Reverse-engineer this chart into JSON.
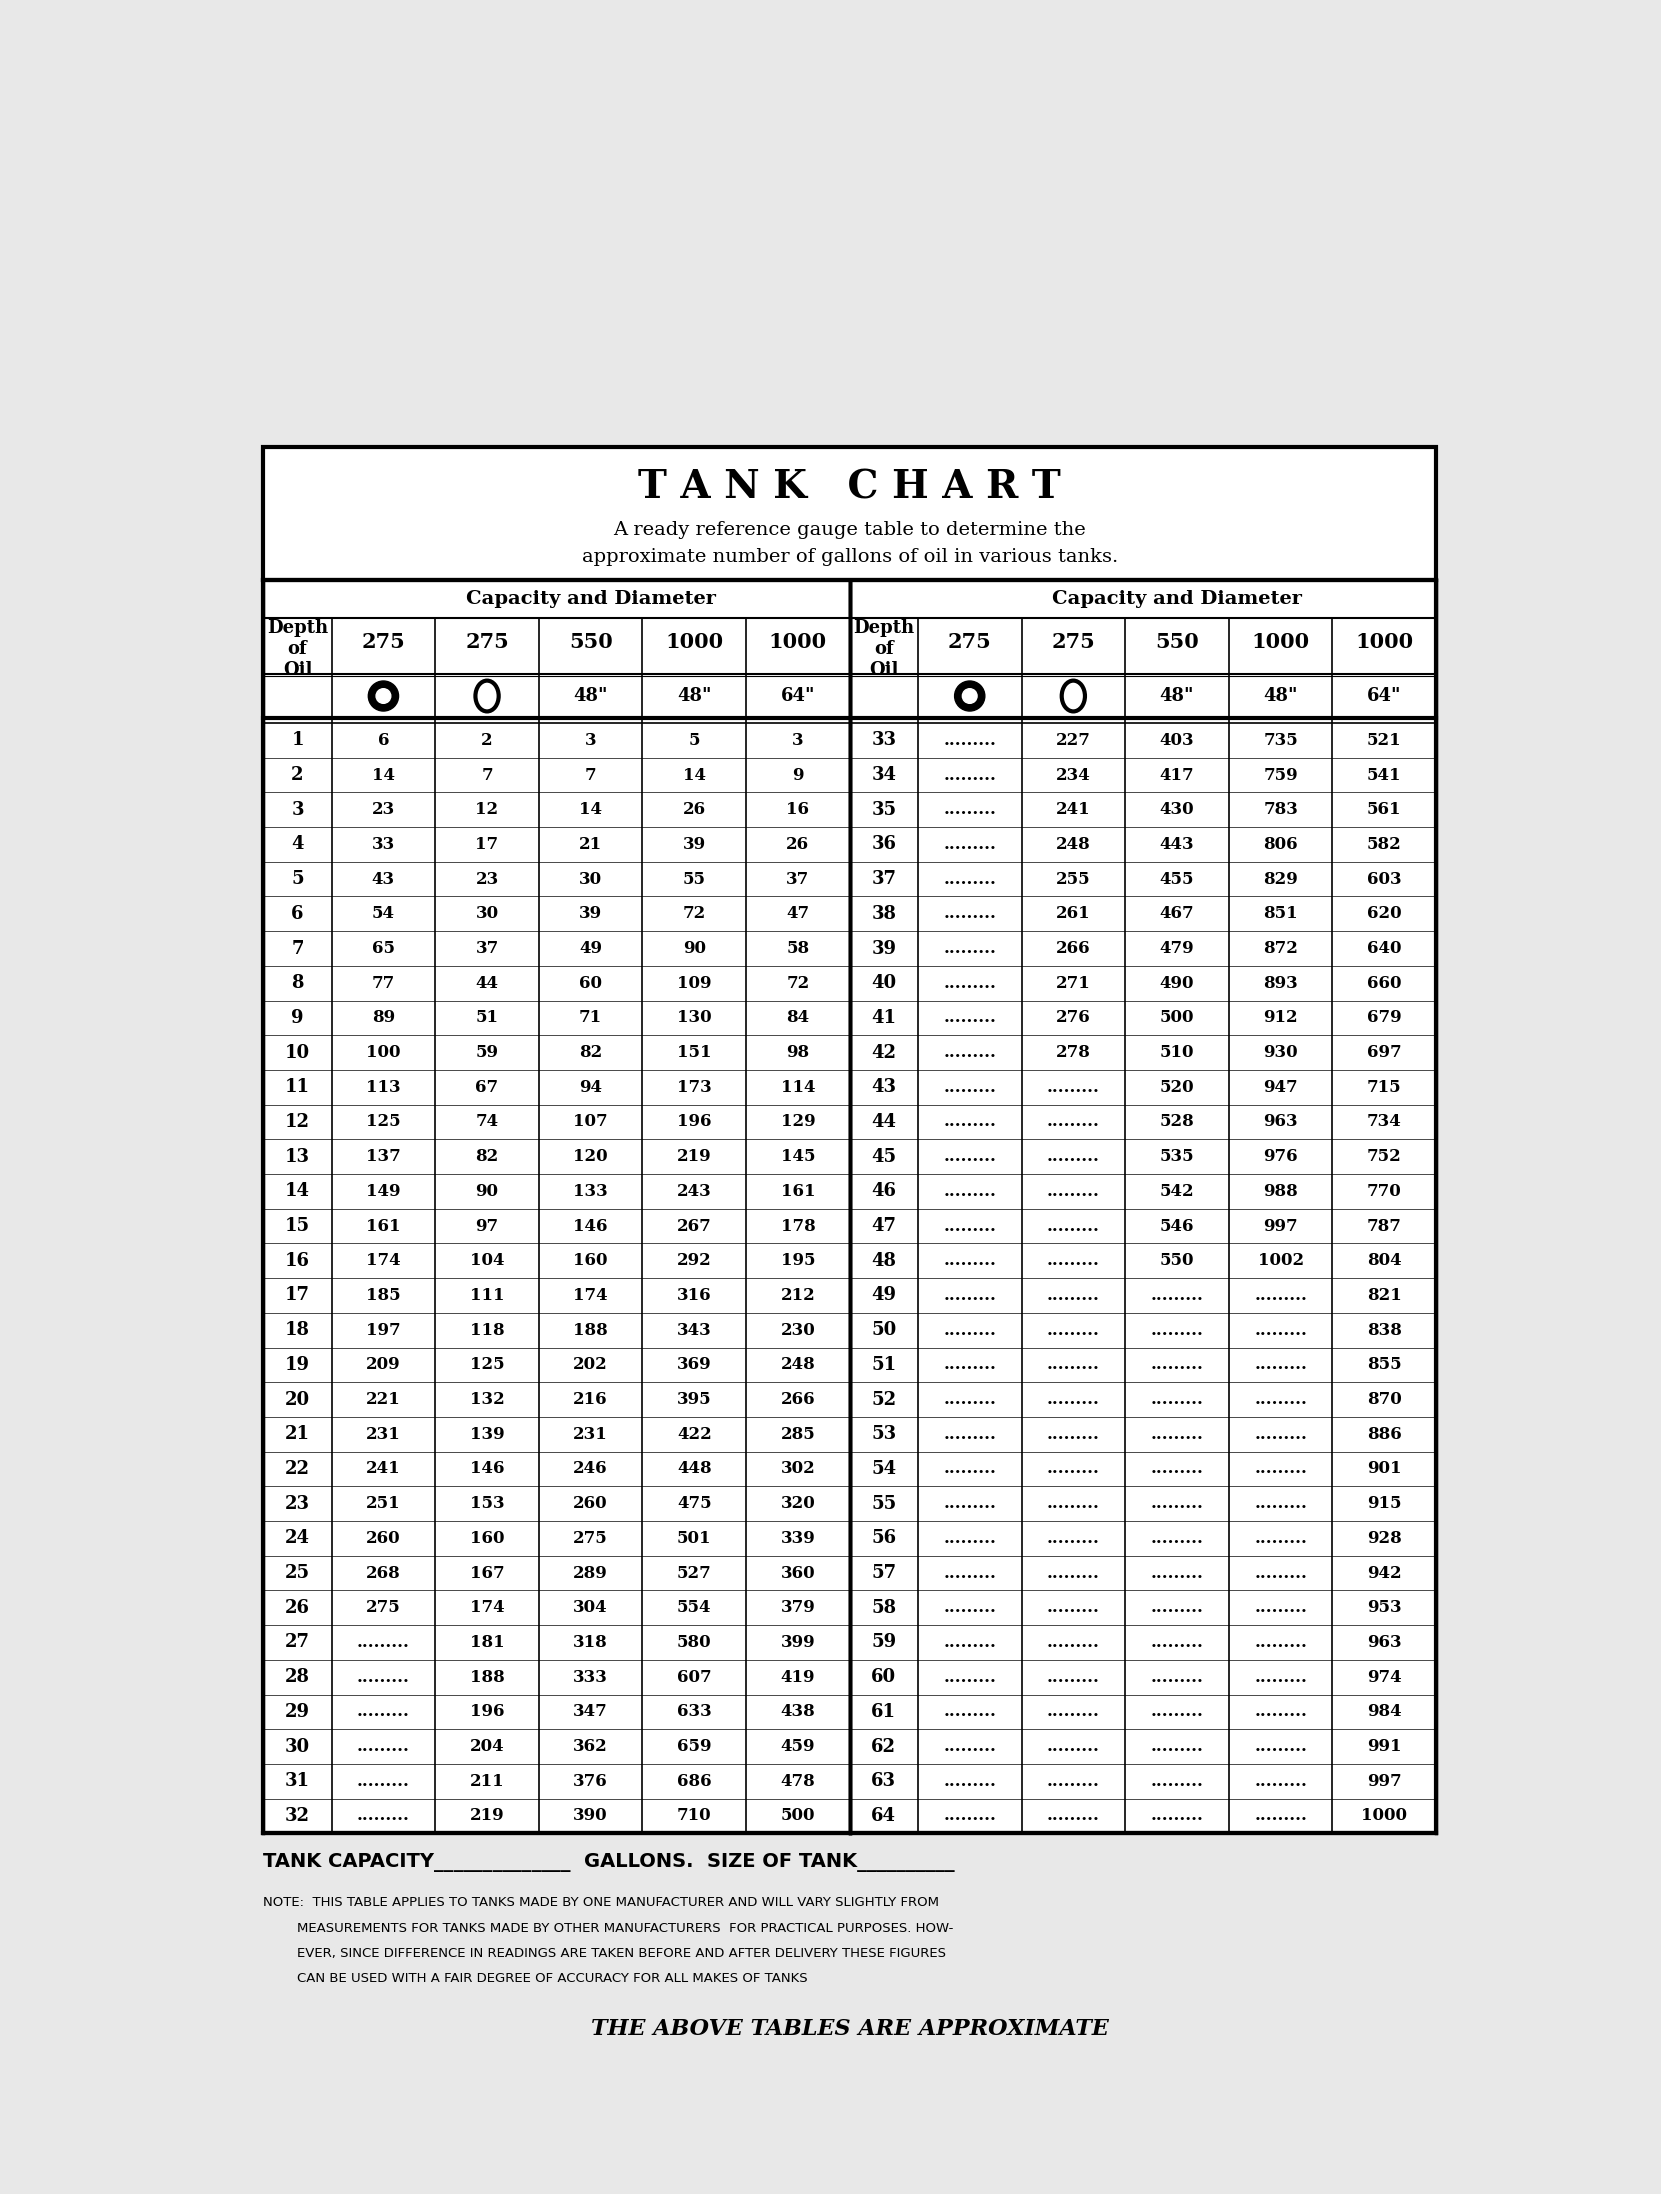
{
  "title": "T A N K   C H A R T",
  "subtitle1": "A ready reference gauge table to determine the",
  "subtitle2": "approximate number of gallons of oil in various tanks.",
  "cap_diam_label": "Capacity and Diameter",
  "footer_line": "TANK CAPACITY______________  GALLONS.  SIZE OF TANK__________",
  "footer_note_lines": [
    "NOTE:  THIS TABLE APPLIES TO TANKS MADE BY ONE MANUFACTURER AND WILL VARY SLIGHTLY FROM",
    "        MEASUREMENTS FOR TANKS MADE BY OTHER MANUFACTURERS  FOR PRACTICAL PURPOSES. HOW-",
    "        EVER, SINCE DIFFERENCE IN READINGS ARE TAKEN BEFORE AND AFTER DELIVERY THESE FIGURES",
    "        CAN BE USED WITH A FAIR DEGREE OF ACCURACY FOR ALL MAKES OF TANKS"
  ],
  "footer_bottom": "THE ABOVE TABLES ARE APPROXIMATE",
  "col_headers_capacity": [
    "275",
    "275",
    "550",
    "1000",
    "1000"
  ],
  "col_headers_size": [
    "48\"",
    "48\"",
    "64\""
  ],
  "left_data": [
    [
      1,
      "6",
      "2",
      "3",
      "5",
      "3"
    ],
    [
      2,
      "14",
      "7",
      "7",
      "14",
      "9"
    ],
    [
      3,
      "23",
      "12",
      "14",
      "26",
      "16"
    ],
    [
      4,
      "33",
      "17",
      "21",
      "39",
      "26"
    ],
    [
      5,
      "43",
      "23",
      "30",
      "55",
      "37"
    ],
    [
      6,
      "54",
      "30",
      "39",
      "72",
      "47"
    ],
    [
      7,
      "65",
      "37",
      "49",
      "90",
      "58"
    ],
    [
      8,
      "77",
      "44",
      "60",
      "109",
      "72"
    ],
    [
      9,
      "89",
      "51",
      "71",
      "130",
      "84"
    ],
    [
      10,
      "100",
      "59",
      "82",
      "151",
      "98"
    ],
    [
      11,
      "113",
      "67",
      "94",
      "173",
      "114"
    ],
    [
      12,
      "125",
      "74",
      "107",
      "196",
      "129"
    ],
    [
      13,
      "137",
      "82",
      "120",
      "219",
      "145"
    ],
    [
      14,
      "149",
      "90",
      "133",
      "243",
      "161"
    ],
    [
      15,
      "161",
      "97",
      "146",
      "267",
      "178"
    ],
    [
      16,
      "174",
      "104",
      "160",
      "292",
      "195"
    ],
    [
      17,
      "185",
      "111",
      "174",
      "316",
      "212"
    ],
    [
      18,
      "197",
      "118",
      "188",
      "343",
      "230"
    ],
    [
      19,
      "209",
      "125",
      "202",
      "369",
      "248"
    ],
    [
      20,
      "221",
      "132",
      "216",
      "395",
      "266"
    ],
    [
      21,
      "231",
      "139",
      "231",
      "422",
      "285"
    ],
    [
      22,
      "241",
      "146",
      "246",
      "448",
      "302"
    ],
    [
      23,
      "251",
      "153",
      "260",
      "475",
      "320"
    ],
    [
      24,
      "260",
      "160",
      "275",
      "501",
      "339"
    ],
    [
      25,
      "268",
      "167",
      "289",
      "527",
      "360"
    ],
    [
      26,
      "275",
      "174",
      "304",
      "554",
      "379"
    ],
    [
      27,
      ".........",
      "181",
      "318",
      "580",
      "399"
    ],
    [
      28,
      ".........",
      "188",
      "333",
      "607",
      "419"
    ],
    [
      29,
      ".........",
      "196",
      "347",
      "633",
      "438"
    ],
    [
      30,
      ".........",
      "204",
      "362",
      "659",
      "459"
    ],
    [
      31,
      ".........",
      "211",
      "376",
      "686",
      "478"
    ],
    [
      32,
      ".........",
      "219",
      "390",
      "710",
      "500"
    ]
  ],
  "right_data": [
    [
      33,
      ".........",
      "227",
      "403",
      "735",
      "521"
    ],
    [
      34,
      ".........",
      "234",
      "417",
      "759",
      "541"
    ],
    [
      35,
      ".........",
      "241",
      "430",
      "783",
      "561"
    ],
    [
      36,
      ".........",
      "248",
      "443",
      "806",
      "582"
    ],
    [
      37,
      ".........",
      "255",
      "455",
      "829",
      "603"
    ],
    [
      38,
      ".........",
      "261",
      "467",
      "851",
      "620"
    ],
    [
      39,
      ".........",
      "266",
      "479",
      "872",
      "640"
    ],
    [
      40,
      ".........",
      "271",
      "490",
      "893",
      "660"
    ],
    [
      41,
      ".........",
      "276",
      "500",
      "912",
      "679"
    ],
    [
      42,
      ".........",
      "278",
      "510",
      "930",
      "697"
    ],
    [
      43,
      ".........",
      ".........",
      "520",
      "947",
      "715"
    ],
    [
      44,
      ".........",
      ".........",
      "528",
      "963",
      "734"
    ],
    [
      45,
      ".........",
      ".........",
      "535",
      "976",
      "752"
    ],
    [
      46,
      ".........",
      ".........",
      "542",
      "988",
      "770"
    ],
    [
      47,
      ".........",
      ".........",
      "546",
      "997",
      "787"
    ],
    [
      48,
      ".........",
      ".........",
      "550",
      "1002",
      "804"
    ],
    [
      49,
      ".........",
      ".........",
      ".........",
      ".........",
      "821"
    ],
    [
      50,
      ".........",
      ".........",
      ".........",
      ".........",
      "838"
    ],
    [
      51,
      ".........",
      ".........",
      ".........",
      ".........",
      "855"
    ],
    [
      52,
      ".........",
      ".........",
      ".........",
      ".........",
      "870"
    ],
    [
      53,
      ".........",
      ".........",
      ".........",
      ".........",
      "886"
    ],
    [
      54,
      ".........",
      ".........",
      ".........",
      ".........",
      "901"
    ],
    [
      55,
      ".........",
      ".........",
      ".........",
      ".........",
      "915"
    ],
    [
      56,
      ".........",
      ".........",
      ".........",
      ".........",
      "928"
    ],
    [
      57,
      ".........",
      ".........",
      ".........",
      ".........",
      "942"
    ],
    [
      58,
      ".........",
      ".........",
      ".........",
      ".........",
      "953"
    ],
    [
      59,
      ".........",
      ".........",
      ".........",
      ".........",
      "963"
    ],
    [
      60,
      ".........",
      ".........",
      ".........",
      ".........",
      "974"
    ],
    [
      61,
      ".........",
      ".........",
      ".........",
      ".........",
      "984"
    ],
    [
      62,
      ".........",
      ".........",
      ".........",
      ".........",
      "991"
    ],
    [
      63,
      ".........",
      ".........",
      ".........",
      ".........",
      "997"
    ],
    [
      64,
      ".........",
      ".........",
      ".........",
      ".........",
      "1000"
    ]
  ],
  "bg_color": "#e8e8e8",
  "white": "#ffffff",
  "black": "#000000"
}
